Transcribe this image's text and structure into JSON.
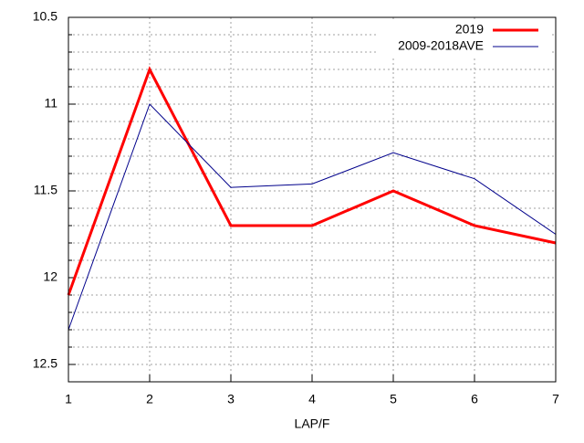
{
  "chart_data": {
    "type": "line",
    "x": [
      1,
      2,
      3,
      4,
      5,
      6,
      7
    ],
    "xlabel": "LAP/F",
    "series": [
      {
        "name": "2019",
        "color": "#ff0000",
        "width": 3,
        "values": [
          12.1,
          10.8,
          11.7,
          11.7,
          11.5,
          11.7,
          11.8
        ]
      },
      {
        "name": "2009-2018AVE",
        "color": "#00008b",
        "width": 1,
        "values": [
          12.3,
          11.0,
          11.48,
          11.46,
          11.28,
          11.43,
          11.75
        ]
      }
    ],
    "xlim": [
      1,
      7
    ],
    "xticks": [
      1,
      2,
      3,
      4,
      5,
      6,
      7
    ],
    "ylim": [
      10.5,
      12.6
    ],
    "yticks": [
      10.5,
      11,
      11.5,
      12,
      12.5
    ],
    "yminorticks": [
      10.6,
      10.7,
      10.8,
      10.9,
      11.1,
      11.2,
      11.3,
      11.4,
      11.6,
      11.7,
      11.8,
      11.9,
      12.1,
      12.2,
      12.3,
      12.4,
      12.6
    ],
    "y_inverted": true,
    "grid": true,
    "legend": "top-right"
  }
}
